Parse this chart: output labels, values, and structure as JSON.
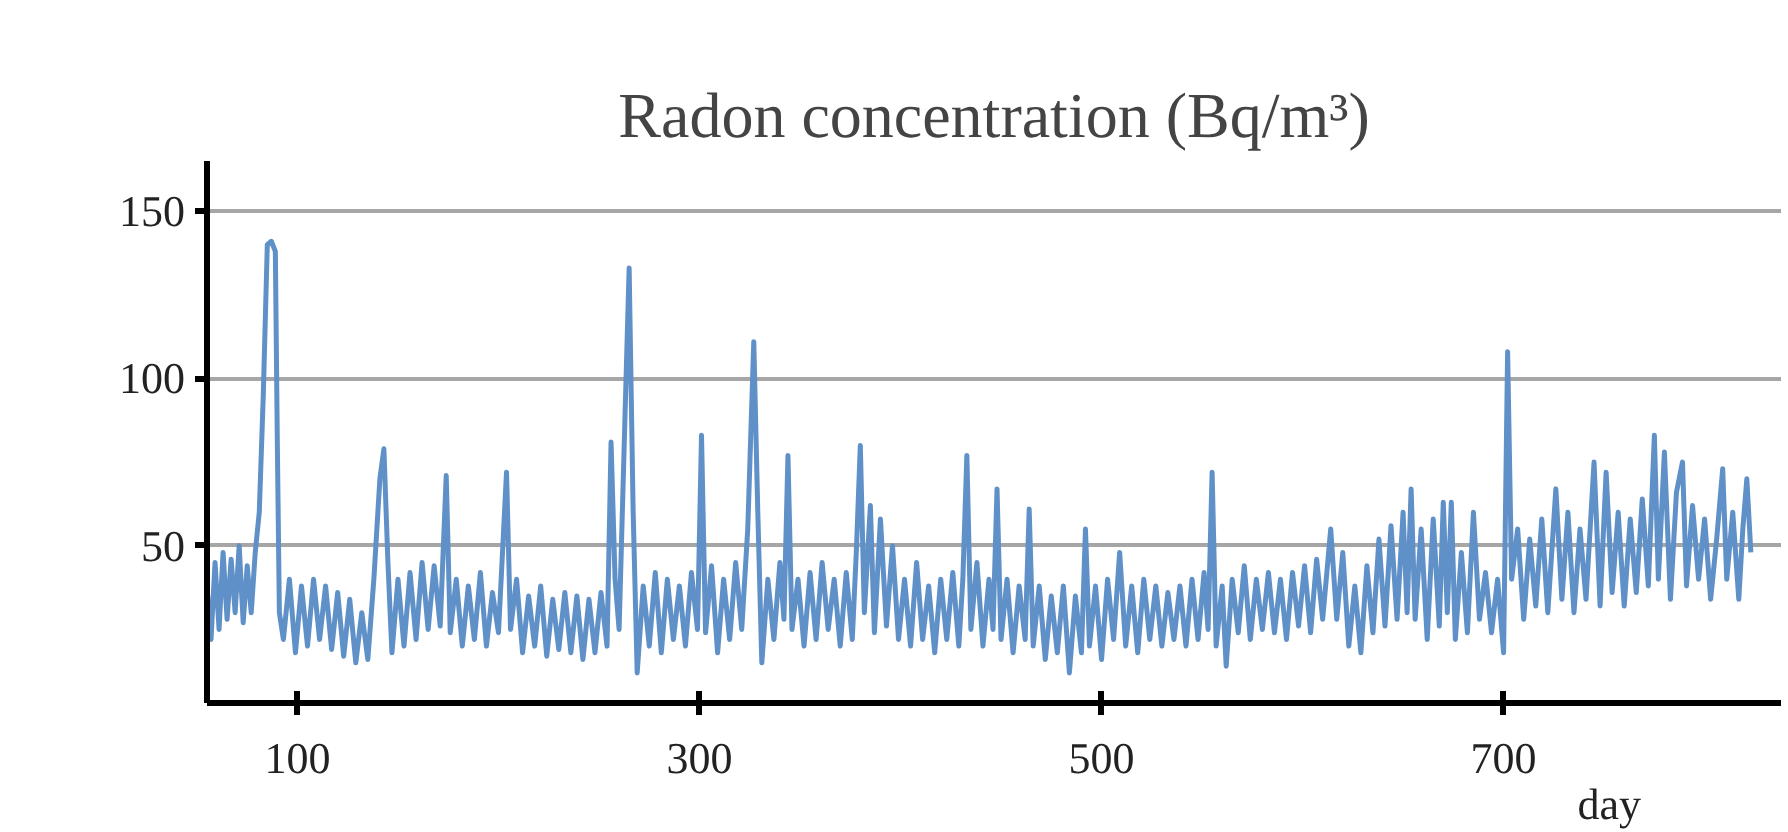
{
  "chart_data": {
    "type": "line",
    "title": "Radon concentration (Bq/m³)",
    "xlabel": "day",
    "xlim": [
      55,
      838
    ],
    "ylim": [
      3,
      165
    ],
    "xticks": [
      100,
      300,
      500,
      700
    ],
    "yticks": [
      50,
      100,
      150
    ],
    "grid": "y",
    "series": [
      {
        "color": "#5f91c8",
        "x": [
          55,
          57,
          59,
          61,
          63,
          65,
          67,
          69,
          71,
          73,
          75,
          77,
          79,
          81,
          83,
          85,
          87,
          89,
          90,
          91,
          93,
          96,
          99,
          102,
          105,
          108,
          111,
          114,
          117,
          120,
          123,
          126,
          129,
          132,
          135,
          138,
          141,
          143,
          145,
          147,
          150,
          153,
          156,
          159,
          162,
          165,
          168,
          171,
          174,
          176,
          179,
          182,
          185,
          188,
          191,
          194,
          197,
          200,
          204,
          206,
          209,
          212,
          215,
          218,
          221,
          224,
          227,
          230,
          233,
          236,
          239,
          242,
          245,
          248,
          251,
          254,
          256,
          258,
          260,
          263,
          265,
          267,
          269,
          272,
          275,
          278,
          281,
          284,
          287,
          290,
          293,
          296,
          299,
          301,
          303,
          306,
          309,
          312,
          315,
          318,
          321,
          324,
          327,
          329,
          331,
          334,
          337,
          340,
          342,
          344,
          346,
          349,
          352,
          355,
          358,
          361,
          364,
          367,
          370,
          373,
          376,
          378,
          380,
          382,
          385,
          387,
          390,
          393,
          396,
          399,
          402,
          405,
          408,
          411,
          414,
          417,
          420,
          423,
          426,
          429,
          431,
          433,
          435,
          438,
          441,
          444,
          446,
          448,
          450,
          453,
          456,
          459,
          462,
          464,
          466,
          469,
          472,
          475,
          478,
          481,
          484,
          487,
          490,
          492,
          494,
          497,
          500,
          503,
          506,
          509,
          512,
          515,
          518,
          521,
          524,
          527,
          530,
          533,
          536,
          539,
          542,
          545,
          548,
          551,
          553,
          555,
          557,
          560,
          562,
          565,
          568,
          571,
          574,
          577,
          580,
          583,
          586,
          589,
          592,
          595,
          598,
          601,
          604,
          607,
          610,
          614,
          617,
          620,
          623,
          626,
          629,
          632,
          635,
          638,
          641,
          644,
          647,
          650,
          652,
          654,
          656,
          659,
          662,
          665,
          668,
          670,
          672,
          674,
          676,
          679,
          682,
          685,
          688,
          691,
          694,
          697,
          700,
          702,
          704,
          707,
          710,
          713,
          716,
          719,
          722,
          726,
          729,
          732,
          735,
          738,
          741,
          745,
          748,
          751,
          754,
          757,
          760,
          763,
          766,
          769,
          772,
          775,
          777,
          780,
          783,
          786,
          789,
          791,
          794,
          797,
          800,
          803,
          806,
          809,
          811,
          814,
          817,
          819,
          821,
          823
        ],
        "values": [
          38,
          22,
          45,
          25,
          48,
          28,
          46,
          30,
          50,
          27,
          44,
          30,
          48,
          60,
          95,
          140,
          141,
          138,
          80,
          30,
          22,
          40,
          18,
          38,
          20,
          40,
          22,
          38,
          19,
          36,
          17,
          34,
          15,
          30,
          16,
          40,
          70,
          79,
          45,
          18,
          40,
          20,
          42,
          22,
          45,
          25,
          44,
          26,
          71,
          24,
          40,
          20,
          38,
          22,
          42,
          20,
          36,
          24,
          72,
          25,
          40,
          18,
          35,
          20,
          38,
          17,
          34,
          19,
          36,
          18,
          35,
          16,
          34,
          18,
          36,
          20,
          81,
          40,
          25,
          90,
          133,
          60,
          12,
          38,
          20,
          42,
          18,
          40,
          22,
          38,
          20,
          42,
          25,
          83,
          24,
          44,
          18,
          40,
          22,
          45,
          25,
          55,
          111,
          60,
          15,
          40,
          22,
          45,
          28,
          77,
          25,
          40,
          20,
          42,
          22,
          45,
          25,
          40,
          20,
          42,
          22,
          48,
          80,
          30,
          62,
          24,
          58,
          26,
          50,
          22,
          40,
          20,
          45,
          22,
          38,
          18,
          40,
          22,
          42,
          20,
          40,
          77,
          25,
          45,
          20,
          40,
          25,
          67,
          22,
          40,
          18,
          38,
          22,
          61,
          20,
          38,
          16,
          35,
          18,
          38,
          12,
          35,
          18,
          55,
          20,
          38,
          16,
          40,
          22,
          48,
          20,
          38,
          18,
          40,
          22,
          38,
          20,
          36,
          22,
          38,
          20,
          40,
          22,
          42,
          25,
          72,
          20,
          38,
          14,
          40,
          24,
          44,
          22,
          40,
          25,
          42,
          24,
          40,
          22,
          42,
          26,
          44,
          24,
          46,
          28,
          55,
          28,
          48,
          20,
          38,
          18,
          44,
          24,
          52,
          26,
          56,
          28,
          60,
          30,
          67,
          28,
          55,
          22,
          58,
          26,
          63,
          30,
          63,
          22,
          48,
          24,
          60,
          28,
          42,
          24,
          40,
          18,
          108,
          40,
          55,
          28,
          52,
          32,
          58,
          30,
          67,
          34,
          60,
          30,
          55,
          34,
          75,
          32,
          72,
          36,
          60,
          32,
          58,
          36,
          64,
          38,
          83,
          40,
          78,
          34,
          66,
          75,
          38,
          62,
          40,
          58,
          34,
          52,
          73,
          40,
          60,
          34,
          55,
          70,
          48
        ]
      }
    ]
  }
}
